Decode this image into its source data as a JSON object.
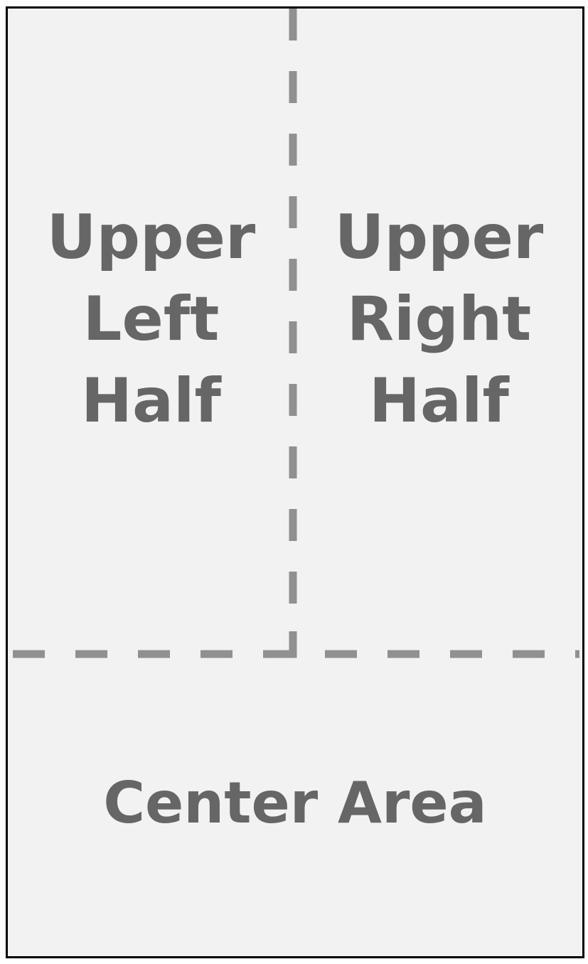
{
  "regions": {
    "upper_left": {
      "line1": "Upper",
      "line2": "Left",
      "line3": "Half"
    },
    "upper_right": {
      "line1": "Upper",
      "line2": "Right",
      "line3": "Half"
    },
    "center": {
      "label": "Center Area"
    }
  },
  "colors": {
    "background": "#f2f2f2",
    "border": "#000000",
    "divider": "#909090",
    "text": "#666666"
  }
}
